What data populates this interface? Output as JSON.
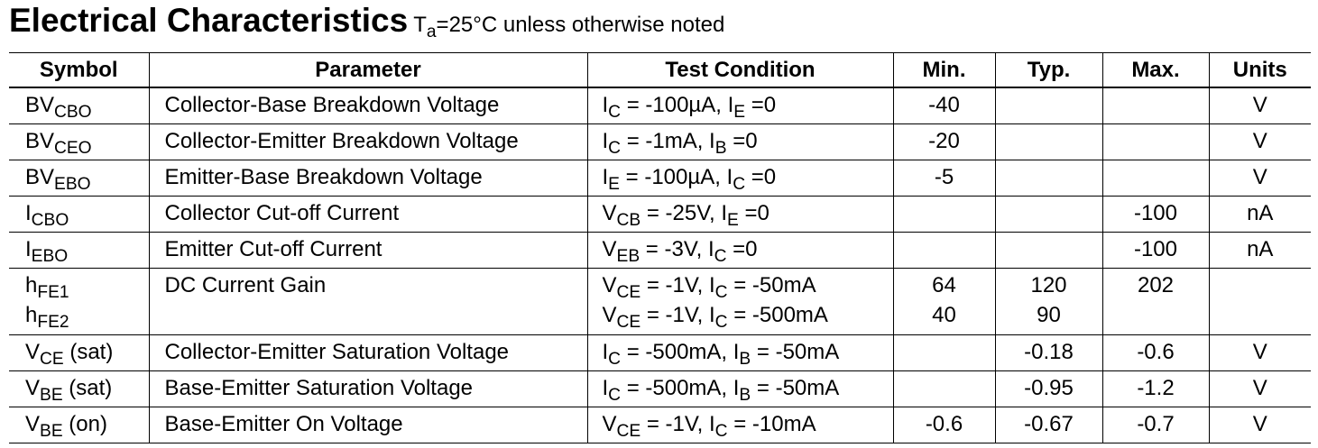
{
  "title": "Electrical Characteristics",
  "note": [
    "T",
    {
      "sub": "a"
    },
    "=25°C unless otherwise noted"
  ],
  "table": {
    "header": [
      "Symbol",
      "Parameter",
      "Test Condition",
      "Min.",
      "Typ.",
      "Max.",
      "Units"
    ],
    "rows": [
      [
        [
          [
            "BV",
            {
              "sub": "CBO"
            }
          ]
        ],
        [
          [
            "Collector-Base Breakdown Voltage"
          ]
        ],
        [
          [
            "I",
            {
              "sub": "C"
            },
            " = -100µA, I",
            {
              "sub": "E"
            },
            " =0"
          ]
        ],
        [
          [
            "-40"
          ]
        ],
        [],
        [],
        [
          [
            "V"
          ]
        ]
      ],
      [
        [
          [
            "BV",
            {
              "sub": "CEO"
            }
          ]
        ],
        [
          [
            "Collector-Emitter Breakdown Voltage"
          ]
        ],
        [
          [
            "I",
            {
              "sub": "C"
            },
            " = -1mA, I",
            {
              "sub": "B"
            },
            " =0"
          ]
        ],
        [
          [
            "-20"
          ]
        ],
        [],
        [],
        [
          [
            "V"
          ]
        ]
      ],
      [
        [
          [
            "BV",
            {
              "sub": "EBO"
            }
          ]
        ],
        [
          [
            "Emitter-Base Breakdown Voltage"
          ]
        ],
        [
          [
            "I",
            {
              "sub": "E"
            },
            " = -100µA, I",
            {
              "sub": "C"
            },
            " =0"
          ]
        ],
        [
          [
            "-5"
          ]
        ],
        [],
        [],
        [
          [
            "V"
          ]
        ]
      ],
      [
        [
          [
            "I",
            {
              "sub": "CBO"
            }
          ]
        ],
        [
          [
            "Collector Cut-off Current"
          ]
        ],
        [
          [
            "V",
            {
              "sub": "CB"
            },
            " = -25V, I",
            {
              "sub": "E"
            },
            " =0"
          ]
        ],
        [],
        [],
        [
          [
            "-100"
          ]
        ],
        [
          [
            "nA"
          ]
        ]
      ],
      [
        [
          [
            "I",
            {
              "sub": "EBO"
            }
          ]
        ],
        [
          [
            "Emitter Cut-off Current"
          ]
        ],
        [
          [
            "V",
            {
              "sub": "EB"
            },
            " = -3V, I",
            {
              "sub": "C"
            },
            " =0"
          ]
        ],
        [],
        [],
        [
          [
            "-100"
          ]
        ],
        [
          [
            "nA"
          ]
        ]
      ],
      [
        [
          [
            "h",
            {
              "sub": "FE1"
            }
          ],
          [
            "h",
            {
              "sub": "FE2"
            }
          ]
        ],
        [
          [
            "DC Current Gain"
          ]
        ],
        [
          [
            "V",
            {
              "sub": "CE"
            },
            " = -1V, I",
            {
              "sub": "C"
            },
            " = -50mA"
          ],
          [
            "V",
            {
              "sub": "CE"
            },
            " = -1V, I",
            {
              "sub": "C"
            },
            " = -500mA"
          ]
        ],
        [
          [
            "64"
          ],
          [
            "40"
          ]
        ],
        [
          [
            "120"
          ],
          [
            "90"
          ]
        ],
        [
          [
            "202"
          ]
        ],
        []
      ],
      [
        [
          [
            "V",
            {
              "sub": "CE"
            },
            " (sat)"
          ]
        ],
        [
          [
            "Collector-Emitter Saturation Voltage"
          ]
        ],
        [
          [
            "I",
            {
              "sub": "C"
            },
            " = -500mA, I",
            {
              "sub": "B"
            },
            " = -50mA"
          ]
        ],
        [],
        [
          [
            "-0.18"
          ]
        ],
        [
          [
            "-0.6"
          ]
        ],
        [
          [
            "V"
          ]
        ]
      ],
      [
        [
          [
            "V",
            {
              "sub": "BE"
            },
            " (sat)"
          ]
        ],
        [
          [
            "Base-Emitter  Saturation Voltage"
          ]
        ],
        [
          [
            "I",
            {
              "sub": "C"
            },
            " = -500mA, I",
            {
              "sub": "B"
            },
            " = -50mA"
          ]
        ],
        [],
        [
          [
            "-0.95"
          ]
        ],
        [
          [
            "-1.2"
          ]
        ],
        [
          [
            "V"
          ]
        ]
      ],
      [
        [
          [
            "V",
            {
              "sub": "BE"
            },
            " (on)"
          ]
        ],
        [
          [
            "Base-Emitter On Voltage"
          ]
        ],
        [
          [
            "V",
            {
              "sub": "CE"
            },
            " = -1V, I",
            {
              "sub": "C"
            },
            " = -10mA"
          ]
        ],
        [
          [
            "-0.6"
          ]
        ],
        [
          [
            "-0.67"
          ]
        ],
        [
          [
            "-0.7"
          ]
        ],
        [
          [
            "V"
          ]
        ]
      ]
    ]
  }
}
